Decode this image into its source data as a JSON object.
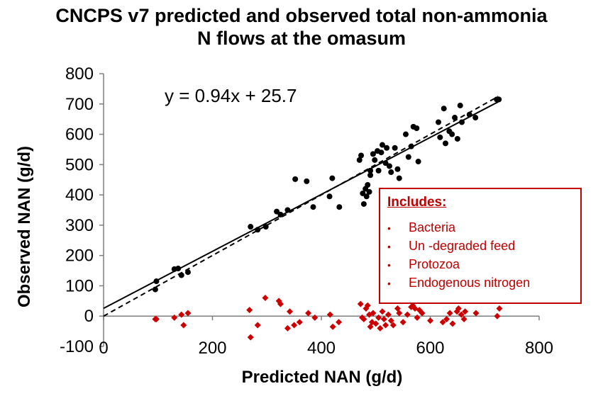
{
  "title_lines": [
    "CNCPS v7 predicted and observed total non-ammonia",
    "N flows at the omasum"
  ],
  "equation": "y = 0.94x + 25.7",
  "legend": {
    "title": "Includes:",
    "items": [
      "Bacteria",
      "Un -degraded feed",
      "Protozoa",
      "Endogenous nitrogen"
    ]
  },
  "colors": {
    "observed": "#000000",
    "residual": "#cc0000",
    "legend_border": "#c00000",
    "legend_text": "#c00000"
  },
  "chart_data": {
    "type": "scatter",
    "title": "CNCPS v7 predicted and observed total non-ammonia N flows at the omasum",
    "xlabel": "Predicted NAN (g/d)",
    "ylabel": "Observed NAN (g/d)",
    "xlim": [
      0,
      800
    ],
    "ylim": [
      -100,
      800
    ],
    "xticks": [
      0,
      200,
      400,
      600,
      800
    ],
    "yticks": [
      -100,
      0,
      100,
      200,
      300,
      400,
      500,
      600,
      700,
      800
    ],
    "grid": false,
    "regression": {
      "slope": 0.94,
      "intercept": 25.7,
      "label": "y = 0.94x + 25.7",
      "style": "solid",
      "x_range": [
        0,
        725
      ]
    },
    "unity_line": {
      "slope": 1,
      "intercept": 0,
      "style": "dashed",
      "x_range": [
        0,
        725
      ]
    },
    "series": [
      {
        "marker": "circle",
        "color": "#000000",
        "points": [
          [
            95,
            88
          ],
          [
            97,
            115
          ],
          [
            130,
            155
          ],
          [
            137,
            157
          ],
          [
            143,
            135
          ],
          [
            155,
            145
          ],
          [
            270,
            295
          ],
          [
            283,
            285
          ],
          [
            298,
            295
          ],
          [
            318,
            345
          ],
          [
            325,
            335
          ],
          [
            338,
            350
          ],
          [
            352,
            452
          ],
          [
            373,
            445
          ],
          [
            385,
            360
          ],
          [
            415,
            395
          ],
          [
            420,
            455
          ],
          [
            433,
            360
          ],
          [
            470,
            515
          ],
          [
            473,
            530
          ],
          [
            476,
            405
          ],
          [
            478,
            370
          ],
          [
            481,
            420
          ],
          [
            483,
            395
          ],
          [
            485,
            433
          ],
          [
            488,
            410
          ],
          [
            490,
            465
          ],
          [
            490,
            480
          ],
          [
            495,
            535
          ],
          [
            498,
            515
          ],
          [
            503,
            545
          ],
          [
            505,
            480
          ],
          [
            510,
            540
          ],
          [
            512,
            565
          ],
          [
            518,
            505
          ],
          [
            520,
            555
          ],
          [
            525,
            495
          ],
          [
            528,
            475
          ],
          [
            535,
            555
          ],
          [
            540,
            485
          ],
          [
            543,
            455
          ],
          [
            555,
            600
          ],
          [
            560,
            525
          ],
          [
            565,
            560
          ],
          [
            569,
            625
          ],
          [
            575,
            620
          ],
          [
            578,
            510
          ],
          [
            615,
            640
          ],
          [
            618,
            590
          ],
          [
            625,
            685
          ],
          [
            628,
            570
          ],
          [
            635,
            610
          ],
          [
            640,
            600
          ],
          [
            645,
            655
          ],
          [
            650,
            585
          ],
          [
            655,
            695
          ],
          [
            658,
            640
          ],
          [
            672,
            665
          ],
          [
            683,
            655
          ],
          [
            722,
            715
          ],
          [
            726,
            715
          ]
        ]
      },
      {
        "marker": "diamond",
        "color": "#cc0000",
        "points": [
          [
            95,
            -10
          ],
          [
            97,
            -10
          ],
          [
            130,
            -5
          ],
          [
            143,
            5
          ],
          [
            147,
            -30
          ],
          [
            155,
            10
          ],
          [
            268,
            20
          ],
          [
            270,
            -70
          ],
          [
            283,
            -30
          ],
          [
            297,
            60
          ],
          [
            322,
            50
          ],
          [
            325,
            40
          ],
          [
            338,
            -40
          ],
          [
            342,
            15
          ],
          [
            350,
            -30
          ],
          [
            360,
            -20
          ],
          [
            376,
            10
          ],
          [
            388,
            -5
          ],
          [
            416,
            5
          ],
          [
            421,
            -35
          ],
          [
            432,
            -20
          ],
          [
            472,
            40
          ],
          [
            475,
            -5
          ],
          [
            478,
            -10
          ],
          [
            482,
            25
          ],
          [
            485,
            35
          ],
          [
            488,
            5
          ],
          [
            490,
            -35
          ],
          [
            493,
            -20
          ],
          [
            495,
            10
          ],
          [
            500,
            -25
          ],
          [
            505,
            -5
          ],
          [
            508,
            -40
          ],
          [
            512,
            15
          ],
          [
            515,
            -10
          ],
          [
            518,
            -30
          ],
          [
            523,
            5
          ],
          [
            528,
            -15
          ],
          [
            532,
            -30
          ],
          [
            540,
            25
          ],
          [
            543,
            10
          ],
          [
            550,
            -20
          ],
          [
            558,
            5
          ],
          [
            565,
            30
          ],
          [
            568,
            35
          ],
          [
            572,
            25
          ],
          [
            576,
            -5
          ],
          [
            580,
            20
          ],
          [
            585,
            10
          ],
          [
            600,
            -15
          ],
          [
            623,
            -20
          ],
          [
            630,
            -10
          ],
          [
            636,
            10
          ],
          [
            641,
            -25
          ],
          [
            649,
            15
          ],
          [
            652,
            25
          ],
          [
            657,
            5
          ],
          [
            662,
            -10
          ],
          [
            664,
            15
          ],
          [
            684,
            10
          ],
          [
            723,
            0
          ],
          [
            727,
            25
          ]
        ]
      }
    ]
  }
}
